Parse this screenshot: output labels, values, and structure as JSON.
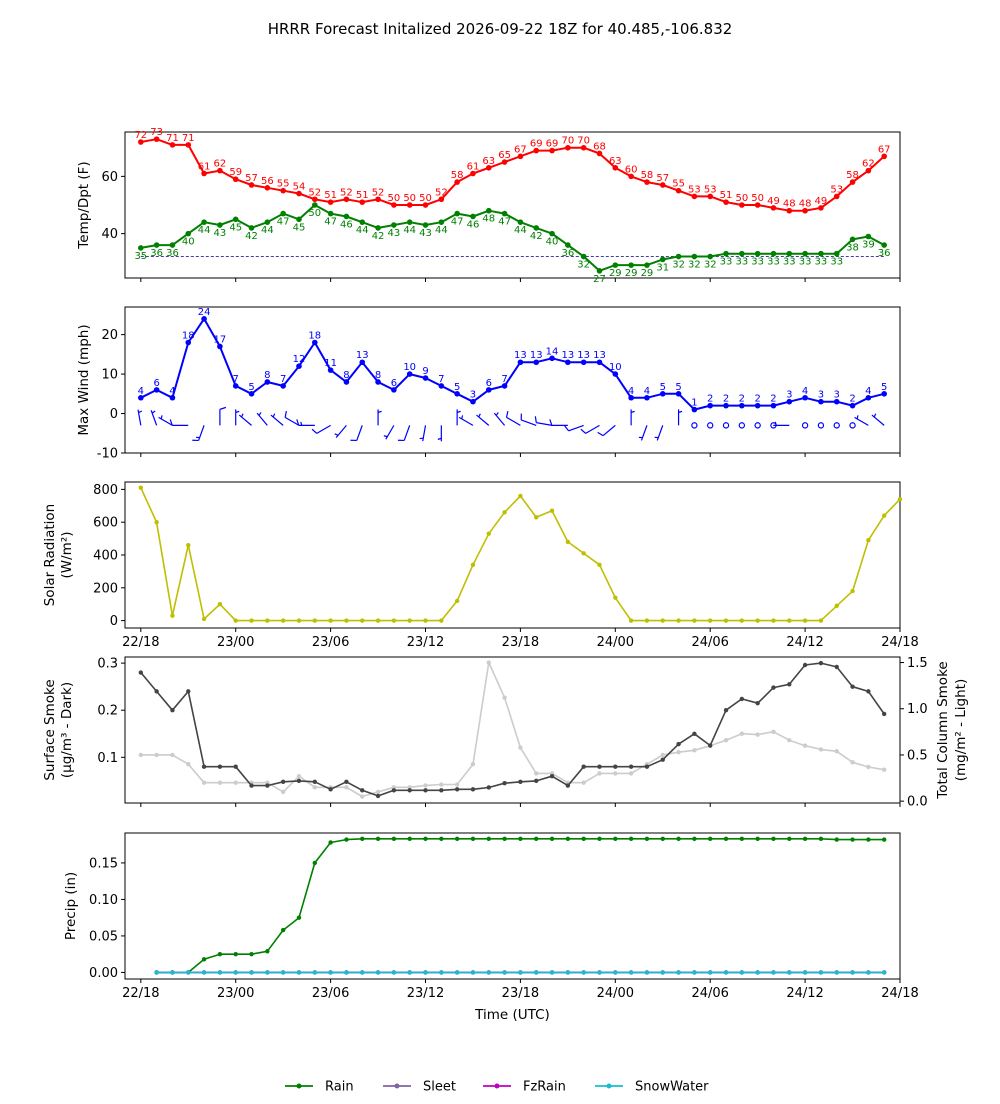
{
  "figure": {
    "title": "HRRR Forecast Initalized 2026-09-22 18Z for 40.485,-106.832"
  },
  "chart_data": [
    {
      "id": "temp",
      "type": "line",
      "ylabel": "Temp/Dpt (F)",
      "ylim": [
        24.5,
        75.5
      ],
      "yticks": [
        40,
        60
      ],
      "xlim": [
        -1,
        48
      ],
      "grid": false,
      "series": [
        {
          "color": "#ff0000",
          "show_labels": true,
          "values": [
            72,
            73,
            71,
            71,
            61,
            62,
            59,
            57,
            56,
            55,
            54,
            52,
            51,
            52,
            51,
            52,
            50,
            50,
            50,
            52,
            58,
            61,
            63,
            65,
            67,
            69,
            69,
            70,
            70,
            68,
            63,
            60,
            58,
            57,
            55,
            53,
            53,
            51,
            50,
            50,
            49,
            48,
            48,
            49,
            53,
            58,
            62,
            67
          ]
        },
        {
          "color": "#008000",
          "show_labels": true,
          "values": [
            35,
            36,
            36,
            40,
            44,
            43,
            45,
            42,
            44,
            47,
            45,
            50,
            47,
            46,
            44,
            42,
            43,
            44,
            43,
            44,
            47,
            46,
            48,
            47,
            44,
            42,
            40,
            36,
            32,
            27,
            29,
            29,
            29,
            31,
            32,
            32,
            32,
            33,
            33,
            33,
            33,
            33,
            33,
            33,
            33,
            38,
            39,
            36
          ]
        }
      ],
      "reference_line": {
        "y": 32,
        "color": "#00008b"
      }
    },
    {
      "id": "wind",
      "type": "line",
      "ylabel": "Max Wind (mph)",
      "ylim": [
        -10,
        27
      ],
      "yticks": [
        -10,
        0,
        10,
        20
      ],
      "xlim": [
        -1,
        48
      ],
      "grid": false,
      "series": [
        {
          "color": "#0000ff",
          "show_labels": true,
          "values": [
            4,
            6,
            4,
            18,
            24,
            17,
            7,
            5,
            8,
            7,
            12,
            18,
            11,
            8,
            13,
            8,
            6,
            10,
            9,
            7,
            5,
            3,
            6,
            7,
            13,
            13,
            14,
            13,
            13,
            13,
            10,
            4,
            4,
            5,
            5,
            1,
            2,
            2,
            2,
            2,
            2,
            3,
            4,
            3,
            3,
            2,
            4,
            5
          ]
        }
      ],
      "wind_barbs": {
        "y": -3,
        "color": "#0000ff",
        "speeds_kt": [
          5,
          5,
          5,
          10,
          15,
          10,
          5,
          5,
          5,
          5,
          10,
          15,
          10,
          5,
          10,
          5,
          5,
          10,
          5,
          5,
          5,
          5,
          5,
          5,
          10,
          10,
          10,
          10,
          10,
          10,
          10,
          5,
          5,
          5,
          5,
          0,
          0,
          0,
          0,
          0,
          0,
          5,
          0,
          0,
          0,
          0,
          5,
          5
        ],
        "directions_deg": [
          350,
          340,
          300,
          270,
          200,
          0,
          0,
          310,
          320,
          310,
          300,
          270,
          240,
          220,
          200,
          0,
          210,
          200,
          190,
          180,
          0,
          300,
          310,
          320,
          300,
          290,
          280,
          270,
          250,
          240,
          230,
          0,
          200,
          200,
          0,
          0,
          0,
          0,
          0,
          0,
          0,
          270,
          0,
          0,
          0,
          0,
          300,
          310
        ]
      }
    },
    {
      "id": "solar",
      "type": "line",
      "ylabel": "Solar Radiation",
      "ylabel2": "(W/m²)",
      "ylim": [
        -45,
        845
      ],
      "yticks": [
        0,
        200,
        400,
        600,
        800
      ],
      "xlim": [
        -1,
        48
      ],
      "grid": false,
      "series": [
        {
          "color": "#bfbf00",
          "values": [
            810,
            600,
            30,
            460,
            10,
            100,
            0,
            0,
            0,
            0,
            0,
            0,
            0,
            0,
            0,
            0,
            0,
            0,
            0,
            0,
            120,
            340,
            530,
            660,
            760,
            630,
            670,
            480,
            410,
            340,
            140,
            0,
            0,
            0,
            0,
            0,
            0,
            0,
            0,
            0,
            0,
            0,
            0,
            0,
            90,
            180,
            490,
            640,
            740
          ]
        }
      ]
    },
    {
      "id": "smoke",
      "type": "line",
      "ylabel": "Surface Smoke",
      "ylabel2": "(µg/m³ - Dark)",
      "ylim": [
        0.003,
        0.313
      ],
      "yticks": [
        0.1,
        0.2,
        0.3
      ],
      "ylabel_right": "Total Column Smoke",
      "ylabel_right2": "(mg/m² - Light)",
      "ylim_right": [
        -0.02,
        1.56
      ],
      "yticks_right": [
        0.0,
        0.5,
        1.0,
        1.5
      ],
      "xlim": [
        -1,
        48
      ],
      "grid": false,
      "series": [
        {
          "color": "#cccccc",
          "axis": "right",
          "values": [
            0.5,
            0.5,
            0.5,
            0.4,
            0.2,
            0.2,
            0.2,
            0.2,
            0.2,
            0.1,
            0.27,
            0.15,
            0.15,
            0.15,
            0.05,
            0.1,
            0.15,
            0.15,
            0.17,
            0.18,
            0.18,
            0.4,
            1.5,
            1.12,
            0.58,
            0.3,
            0.3,
            0.2,
            0.2,
            0.3,
            0.3,
            0.3,
            0.4,
            0.5,
            0.53,
            0.55,
            0.6,
            0.66,
            0.73,
            0.72,
            0.75,
            0.66,
            0.6,
            0.56,
            0.54,
            0.42,
            0.37,
            0.34
          ]
        },
        {
          "color": "#444444",
          "axis": "left",
          "values": [
            0.28,
            0.24,
            0.2,
            0.24,
            0.08,
            0.08,
            0.08,
            0.04,
            0.04,
            0.048,
            0.05,
            0.048,
            0.032,
            0.048,
            0.03,
            0.018,
            0.03,
            0.03,
            0.03,
            0.03,
            0.032,
            0.032,
            0.036,
            0.045,
            0.048,
            0.05,
            0.06,
            0.04,
            0.08,
            0.08,
            0.08,
            0.08,
            0.08,
            0.095,
            0.128,
            0.15,
            0.125,
            0.2,
            0.224,
            0.215,
            0.248,
            0.255,
            0.296,
            0.3,
            0.292,
            0.25,
            0.24,
            0.192
          ]
        }
      ]
    },
    {
      "id": "precip",
      "type": "line",
      "ylabel": "Precip (in)",
      "xlabel": "Time (UTC)",
      "ylim": [
        -0.009,
        0.191
      ],
      "yticks": [
        0.0,
        0.05,
        0.1,
        0.15
      ],
      "xlim": [
        -1,
        48
      ],
      "xticks": [
        0,
        6,
        12,
        18,
        24,
        30,
        36,
        42,
        48
      ],
      "xticklabels": [
        "22/18",
        "23/00",
        "23/06",
        "23/12",
        "23/18",
        "24/00",
        "24/06",
        "24/12",
        "24/18"
      ],
      "grid": false,
      "series": [
        {
          "name": "Rain",
          "color": "#008000",
          "start": 1,
          "values": [
            0,
            0,
            0,
            0.018,
            0.025,
            0.025,
            0.025,
            0.029,
            0.058,
            0.075,
            0.15,
            0.178,
            0.182,
            0.183,
            0.183,
            0.183,
            0.183,
            0.183,
            0.183,
            0.183,
            0.183,
            0.183,
            0.183,
            0.183,
            0.183,
            0.183,
            0.183,
            0.183,
            0.183,
            0.183,
            0.183,
            0.183,
            0.183,
            0.183,
            0.183,
            0.183,
            0.183,
            0.183,
            0.183,
            0.183,
            0.183,
            0.183,
            0.183,
            0.182,
            0.182,
            0.182,
            0.182
          ]
        },
        {
          "name": "Sleet",
          "color": "#8064a2",
          "start": 1,
          "constant": 0
        },
        {
          "name": "FzRain",
          "color": "#bf00bf",
          "start": 1,
          "constant": 0
        },
        {
          "name": "SnowWater",
          "color": "#17becf",
          "start": 1,
          "constant": 0
        }
      ]
    }
  ],
  "legend": {
    "placement": "bottom-center",
    "items": [
      {
        "label": "Rain",
        "color": "#008000"
      },
      {
        "label": "Sleet",
        "color": "#8064a2"
      },
      {
        "label": "FzRain",
        "color": "#bf00bf"
      },
      {
        "label": "SnowWater",
        "color": "#17becf"
      }
    ]
  }
}
